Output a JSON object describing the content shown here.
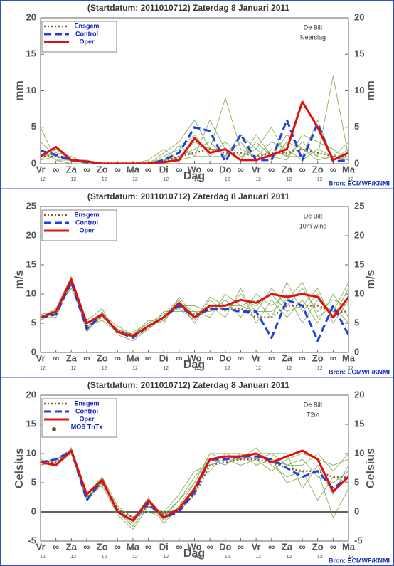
{
  "chart_data": [
    {
      "type": "line",
      "title": "(Startdatum: 2011010712)  Zaterdag  8 Januari  2011",
      "location": "De Bilt",
      "variable": "Neerslag",
      "ylabel": "mm",
      "xlabel": "Dag",
      "source": "Bron: ECMWF/KNMI",
      "categories": [
        "Vr",
        "∞",
        "Za",
        "∞",
        "Zo",
        "∞",
        "Ma",
        "∞",
        "Di",
        "∞",
        "Wo",
        "∞",
        "Do",
        "∞",
        "Vr",
        "∞",
        "Za",
        "∞",
        "Zo",
        "∞",
        "Ma"
      ],
      "x_sublabels": [
        "12",
        null,
        "12",
        null,
        "12",
        null,
        "12",
        null,
        "12",
        null,
        "12",
        null,
        "12",
        null,
        "12",
        null,
        "12",
        null,
        "12",
        null,
        "12"
      ],
      "ylim": [
        0,
        20
      ],
      "yticks": [
        0,
        5,
        10,
        15,
        20
      ],
      "zero_line": false,
      "series": [
        {
          "color": "#86b05c",
          "style": "thin",
          "values": [
            3,
            1,
            0.5,
            0,
            0,
            0,
            0,
            0,
            1,
            2,
            4,
            1,
            3,
            1,
            2,
            0.5,
            3,
            2,
            1,
            0.5,
            1
          ]
        },
        {
          "color": "#86b05c",
          "style": "thin",
          "values": [
            0.5,
            2,
            0.3,
            0.2,
            0,
            0,
            0,
            0.2,
            0.5,
            2.5,
            1,
            6,
            2,
            0.5,
            4,
            1,
            0.5,
            4,
            3,
            2,
            0.5
          ]
        },
        {
          "color": "#86b05c",
          "style": "thin",
          "values": [
            5,
            0.5,
            0.5,
            0.5,
            0,
            0,
            0,
            0,
            0.5,
            1,
            2,
            3,
            1,
            3,
            0.5,
            2,
            1,
            1,
            6,
            0.5,
            2
          ]
        },
        {
          "color": "#86b05c",
          "style": "thin",
          "values": [
            1,
            1.5,
            1,
            0,
            0,
            0,
            0,
            0,
            0,
            1,
            3,
            2,
            9,
            2,
            1,
            3,
            2,
            0.5,
            2,
            1,
            0.5
          ]
        },
        {
          "color": "#86b05c",
          "style": "thin",
          "values": [
            2,
            0.5,
            0,
            0,
            0,
            0,
            0,
            0.5,
            2,
            0.5,
            1,
            1,
            1,
            4,
            2,
            5,
            1,
            3,
            1,
            12,
            1
          ]
        },
        {
          "color": "#86b05c",
          "style": "thin",
          "values": [
            0.5,
            1,
            0.5,
            0.3,
            0,
            0,
            0,
            0,
            1.5,
            3,
            6,
            2,
            2,
            0.5,
            3,
            1,
            4,
            2,
            0.5,
            1,
            3
          ]
        },
        {
          "name": "Ensgem",
          "color": "#8b5a2b",
          "style": "dotted",
          "values": [
            1,
            1,
            0.5,
            0.3,
            0.1,
            0.1,
            0.1,
            0.1,
            0.3,
            1,
            1.5,
            2,
            1.5,
            1.5,
            1,
            1.5,
            1.5,
            2,
            1.5,
            1,
            1
          ]
        },
        {
          "name": "Control",
          "color": "#2040e0",
          "style": "dashed",
          "values": [
            1.8,
            1.2,
            0.5,
            0.2,
            0,
            0,
            0,
            0,
            0.5,
            1.5,
            5,
            4.5,
            0.3,
            4,
            0.5,
            0.5,
            6,
            0.5,
            5.5,
            0.3,
            0.5
          ]
        },
        {
          "name": "Oper",
          "color": "#e01010",
          "style": "solid",
          "values": [
            1,
            2.3,
            0.5,
            0.3,
            0,
            0,
            0,
            0,
            0.2,
            0.5,
            3.5,
            1.5,
            2,
            0.5,
            0.5,
            1.2,
            2,
            8.5,
            5,
            0.5,
            1.5
          ]
        }
      ]
    },
    {
      "type": "line",
      "title": "(Startdatum: 2011010712)  Zaterdag  8 Januari  2011",
      "location": "De Bilt",
      "variable": "10m wind",
      "ylabel": "m/s",
      "xlabel": "Dag",
      "source": "Bron: ECMWF/KNMI",
      "categories": [
        "Vr",
        "∞",
        "Za",
        "∞",
        "Zo",
        "∞",
        "Ma",
        "∞",
        "Di",
        "∞",
        "Wo",
        "∞",
        "Do",
        "∞",
        "Vr",
        "∞",
        "Za",
        "∞",
        "Zo",
        "∞",
        "Ma"
      ],
      "x_sublabels": [
        "12",
        null,
        "12",
        null,
        "12",
        null,
        "12",
        null,
        "12",
        null,
        "12",
        null,
        "12",
        null,
        "12",
        null,
        "12",
        null,
        "12",
        null,
        "12"
      ],
      "ylim": [
        0,
        25
      ],
      "yticks": [
        0,
        5,
        10,
        15,
        20,
        25
      ],
      "zero_line": false,
      "series": [
        {
          "color": "#86b05c",
          "style": "thin",
          "values": [
            6,
            7.5,
            13,
            4,
            7,
            3,
            3,
            5,
            6.5,
            9,
            5,
            9,
            7,
            10,
            7,
            11,
            8,
            11,
            7,
            9,
            8
          ]
        },
        {
          "color": "#86b05c",
          "style": "thin",
          "values": [
            5.5,
            7,
            11.5,
            5,
            6,
            4,
            2.5,
            4,
            7,
            7,
            7,
            6,
            10,
            8,
            9,
            6,
            12,
            7,
            10,
            6,
            11
          ]
        },
        {
          "color": "#86b05c",
          "style": "thin",
          "values": [
            6,
            6.5,
            12.5,
            3.5,
            6.5,
            4.5,
            3,
            5.5,
            5,
            9.5,
            6,
            8,
            6,
            11,
            5,
            9,
            6,
            9,
            5,
            10,
            6
          ]
        },
        {
          "color": "#86b05c",
          "style": "thin",
          "values": [
            6.5,
            7,
            12,
            5.5,
            7.5,
            3,
            2,
            4,
            6,
            8,
            8,
            7,
            9,
            6,
            10,
            8,
            10,
            5,
            9,
            7,
            12
          ]
        },
        {
          "color": "#86b05c",
          "style": "thin",
          "values": [
            5.5,
            7.5,
            11,
            4.5,
            5.5,
            3.5,
            3.5,
            5,
            6.5,
            7.5,
            5.5,
            9.5,
            8,
            8,
            7,
            7,
            9,
            12,
            6,
            8,
            5
          ]
        },
        {
          "color": "#86b05c",
          "style": "thin",
          "values": [
            6,
            6,
            12,
            4,
            6,
            4,
            3,
            4.5,
            5.5,
            8.5,
            7,
            7,
            8,
            9,
            8,
            10,
            7,
            8,
            11,
            5,
            9
          ]
        },
        {
          "name": "Ensgem",
          "color": "#8b5a2b",
          "style": "dotted",
          "values": [
            6,
            7,
            12,
            4.5,
            6.5,
            3.8,
            3,
            4.5,
            6,
            8,
            6.5,
            7.5,
            7.5,
            7.5,
            6,
            6,
            8,
            8,
            8,
            7,
            7
          ]
        },
        {
          "name": "Control",
          "color": "#2040e0",
          "style": "dashed",
          "values": [
            6,
            6.5,
            12,
            4,
            6.5,
            3.5,
            2.5,
            4.5,
            6,
            8,
            6,
            7.5,
            7.5,
            7,
            7,
            2.5,
            9,
            8,
            2,
            8,
            3
          ]
        },
        {
          "name": "Oper",
          "color": "#e01010",
          "style": "solid",
          "values": [
            6,
            7,
            12.5,
            5,
            6.5,
            3.5,
            2.8,
            4.5,
            6,
            8.5,
            6,
            8,
            8,
            9,
            8.5,
            10,
            9.5,
            10,
            9.5,
            6,
            9.5
          ]
        }
      ]
    },
    {
      "type": "line",
      "title": "(Startdatum: 2011010712)  Zaterdag  8 Januari  2011",
      "location": "De Bilt",
      "variable": "T2m",
      "ylabel": "Celsius",
      "xlabel": "Dag",
      "source": "Bron: ECMWF/KNMI",
      "categories": [
        "Vr",
        "∞",
        "Za",
        "∞",
        "Zo",
        "∞",
        "Ma",
        "∞",
        "Di",
        "∞",
        "Wo",
        "∞",
        "Do",
        "∞",
        "Vr",
        "∞",
        "Za",
        "∞",
        "Zo",
        "∞",
        "Ma"
      ],
      "x_sublabels": [
        "12",
        null,
        "12",
        null,
        "12",
        null,
        "12",
        null,
        "12",
        null,
        "12",
        null,
        "12",
        null,
        "12",
        null,
        "12",
        null,
        "12",
        null,
        "12"
      ],
      "ylim": [
        -5,
        20
      ],
      "yticks": [
        -5,
        0,
        5,
        10,
        15,
        20
      ],
      "zero_line": true,
      "series": [
        {
          "color": "#86b05c",
          "style": "thin",
          "values": [
            8,
            9,
            10,
            2,
            5,
            0,
            -2,
            2,
            -2,
            1,
            5,
            10,
            10,
            9,
            10,
            9,
            8,
            9,
            6,
            5,
            7
          ]
        },
        {
          "color": "#86b05c",
          "style": "thin",
          "values": [
            9,
            8,
            11,
            3,
            6,
            1,
            -1,
            0,
            -1,
            2,
            6,
            9,
            8,
            10,
            9,
            10,
            10,
            4,
            8,
            3,
            8
          ]
        },
        {
          "color": "#86b05c",
          "style": "thin",
          "values": [
            8.5,
            9,
            10,
            2.5,
            4.5,
            -0.5,
            -3,
            1,
            0,
            3,
            7,
            8,
            9,
            9,
            11,
            8,
            6,
            7,
            2,
            6,
            5
          ]
        },
        {
          "color": "#86b05c",
          "style": "thin",
          "values": [
            8,
            8.5,
            10.5,
            3,
            5,
            0.5,
            -1.5,
            2.5,
            -1.5,
            1,
            4,
            10,
            9,
            8,
            9,
            7,
            9,
            10,
            9,
            8,
            9
          ]
        },
        {
          "color": "#86b05c",
          "style": "thin",
          "values": [
            9,
            8,
            10,
            2,
            5.5,
            0,
            -2.5,
            1.5,
            -0.5,
            2,
            5,
            7,
            10,
            10,
            8,
            9,
            5,
            6,
            7,
            -1,
            4
          ]
        },
        {
          "color": "#86b05c",
          "style": "thin",
          "values": [
            8.5,
            9,
            10.5,
            2.5,
            5,
            1,
            -1,
            1,
            -1,
            0,
            3,
            9,
            9.5,
            9,
            10,
            10,
            8,
            8,
            10,
            7,
            10
          ]
        },
        {
          "name": "Ensgem",
          "color": "#8b5a2b",
          "style": "dotted",
          "values": [
            8.5,
            8.5,
            10.5,
            2.5,
            5,
            0.5,
            -1,
            1,
            -0.5,
            0.5,
            3,
            8,
            8.5,
            9,
            9,
            8.5,
            7.5,
            7,
            7,
            6,
            6
          ]
        },
        {
          "name": "Control",
          "color": "#2040e0",
          "style": "dashed",
          "values": [
            8.5,
            9,
            10.5,
            2,
            5.5,
            0,
            -1.5,
            1.5,
            -1,
            0,
            3.5,
            9,
            9,
            9.5,
            9.5,
            9,
            7.5,
            6,
            7,
            4,
            6
          ]
        },
        {
          "name": "Oper",
          "color": "#e01010",
          "style": "solid",
          "values": [
            8.5,
            8,
            10.5,
            3,
            5.5,
            0,
            -1.5,
            2,
            -1,
            0.5,
            4,
            9,
            9.5,
            9.5,
            10,
            8.5,
            9.5,
            10.5,
            9,
            3.5,
            6
          ]
        },
        {
          "name": "MOS TnTx",
          "color": "#7a4a20",
          "style": "dots",
          "values": [
            null,
            null,
            null,
            null,
            null,
            null,
            null,
            null,
            null,
            null,
            null,
            null,
            null,
            null,
            null,
            null,
            null,
            null,
            null,
            null,
            null
          ]
        }
      ]
    }
  ]
}
